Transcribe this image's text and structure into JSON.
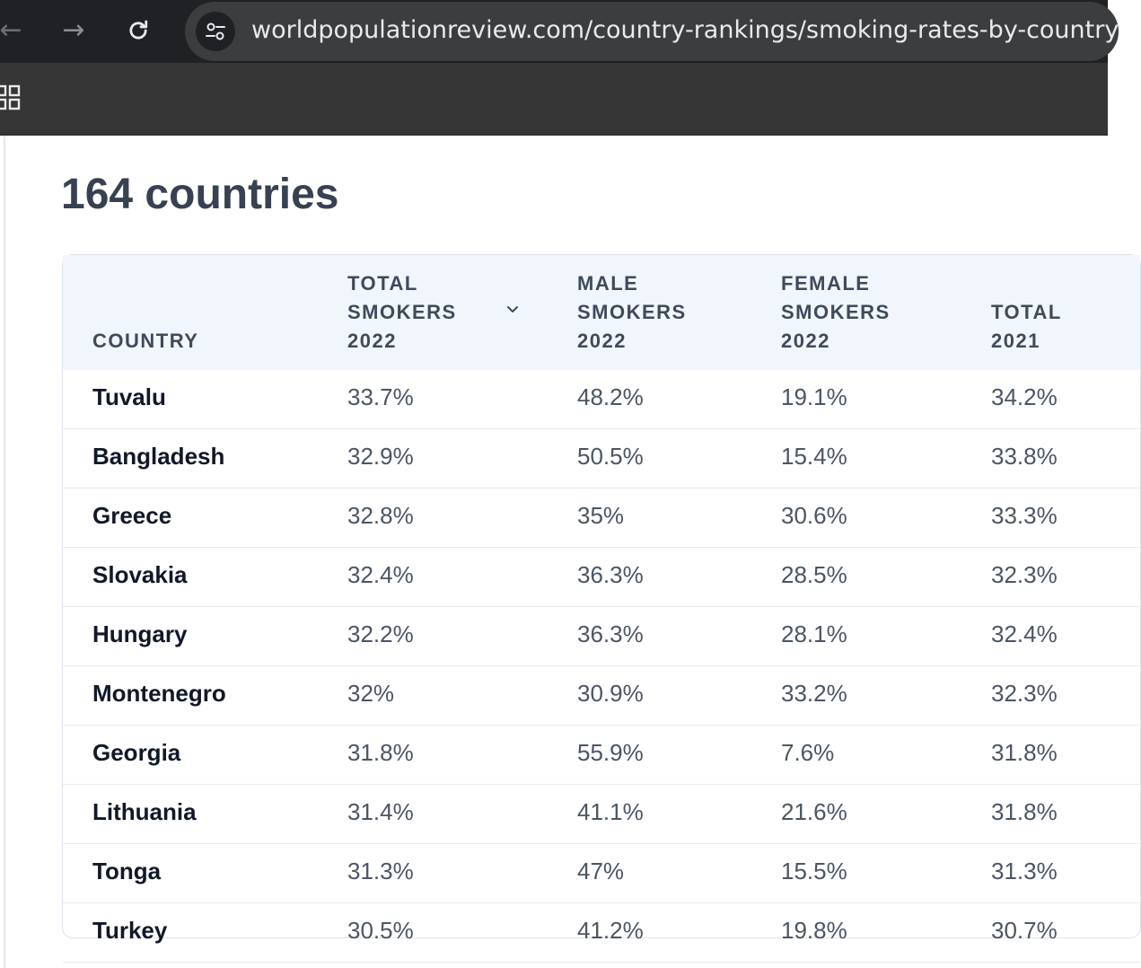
{
  "browser": {
    "url": "worldpopulationreview.com/country-rankings/smoking-rates-by-country"
  },
  "page": {
    "title": "164 countries"
  },
  "table": {
    "headers": {
      "country": [
        "COUNTRY"
      ],
      "total_2022": [
        "TOTAL",
        "SMOKERS",
        "2022"
      ],
      "male_2022": [
        "MALE",
        "SMOKERS",
        "2022"
      ],
      "female_2022": [
        "FEMALE",
        "SMOKERS",
        "2022"
      ],
      "total_2021": [
        "TOTAL",
        "2021"
      ]
    },
    "rows": [
      {
        "country": "Tuvalu",
        "total_2022": "33.7%",
        "male_2022": "48.2%",
        "female_2022": "19.1%",
        "total_2021": "34.2%"
      },
      {
        "country": "Bangladesh",
        "total_2022": "32.9%",
        "male_2022": "50.5%",
        "female_2022": "15.4%",
        "total_2021": "33.8%"
      },
      {
        "country": "Greece",
        "total_2022": "32.8%",
        "male_2022": "35%",
        "female_2022": "30.6%",
        "total_2021": "33.3%"
      },
      {
        "country": "Slovakia",
        "total_2022": "32.4%",
        "male_2022": "36.3%",
        "female_2022": "28.5%",
        "total_2021": "32.3%"
      },
      {
        "country": "Hungary",
        "total_2022": "32.2%",
        "male_2022": "36.3%",
        "female_2022": "28.1%",
        "total_2021": "32.4%"
      },
      {
        "country": "Montenegro",
        "total_2022": "32%",
        "male_2022": "30.9%",
        "female_2022": "33.2%",
        "total_2021": "32.3%"
      },
      {
        "country": "Georgia",
        "total_2022": "31.8%",
        "male_2022": "55.9%",
        "female_2022": "7.6%",
        "total_2021": "31.8%"
      },
      {
        "country": "Lithuania",
        "total_2022": "31.4%",
        "male_2022": "41.1%",
        "female_2022": "21.6%",
        "total_2021": "31.8%"
      },
      {
        "country": "Tonga",
        "total_2022": "31.3%",
        "male_2022": "47%",
        "female_2022": "15.5%",
        "total_2021": "31.3%"
      },
      {
        "country": "Turkey",
        "total_2022": "30.5%",
        "male_2022": "41.2%",
        "female_2022": "19.8%",
        "total_2021": "30.7%"
      }
    ]
  }
}
